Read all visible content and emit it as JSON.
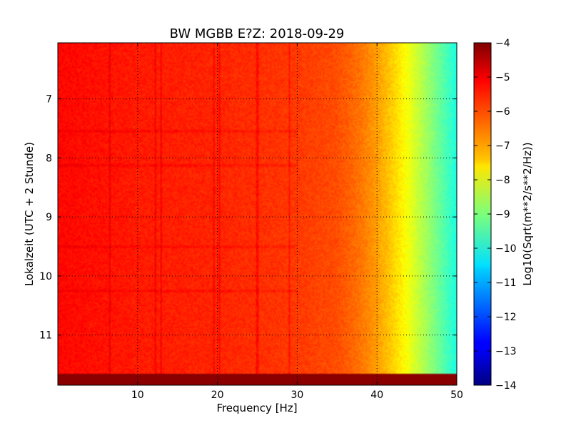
{
  "chart_data": {
    "type": "heatmap",
    "title": "BW MGBB E?Z: 2018-09-29",
    "xlabel": "Frequency [Hz]",
    "ylabel": "Lokalzeit (UTC + 2 Stunde)",
    "xlim": [
      0,
      50
    ],
    "ylim": [
      11.85,
      6.05
    ],
    "x_ticks": [
      10,
      20,
      30,
      40,
      50
    ],
    "y_ticks": [
      7,
      8,
      9,
      10,
      11
    ],
    "grid": true,
    "colormap": "jet",
    "colorbar": {
      "label": "Log10(Sqrt(m**2/s**2/Hz))",
      "min": -14,
      "max": -4,
      "ticks": [
        -4,
        -5,
        -6,
        -7,
        -8,
        -9,
        -10,
        -11,
        -12,
        -13,
        -14
      ]
    },
    "spectral_profile": {
      "frequency_hz": [
        0,
        5,
        10,
        15,
        20,
        25,
        30,
        35,
        38,
        40,
        42,
        44,
        46,
        48,
        50
      ],
      "level": [
        -5.3,
        -5.4,
        -5.5,
        -5.55,
        -5.6,
        -5.7,
        -5.8,
        -6.0,
        -6.4,
        -6.8,
        -7.3,
        -7.9,
        -8.6,
        -9.3,
        -10.0
      ]
    },
    "vertical_lines_hz": [
      6.5,
      12.2,
      12.9,
      19.6,
      20.3,
      25.0,
      29.0
    ],
    "horizontal_bands_hour": [
      7.55,
      8.12,
      9.5,
      10.25
    ],
    "saturated_band_hour": [
      11.65,
      11.85
    ],
    "saturated_band_level": -4.1
  }
}
